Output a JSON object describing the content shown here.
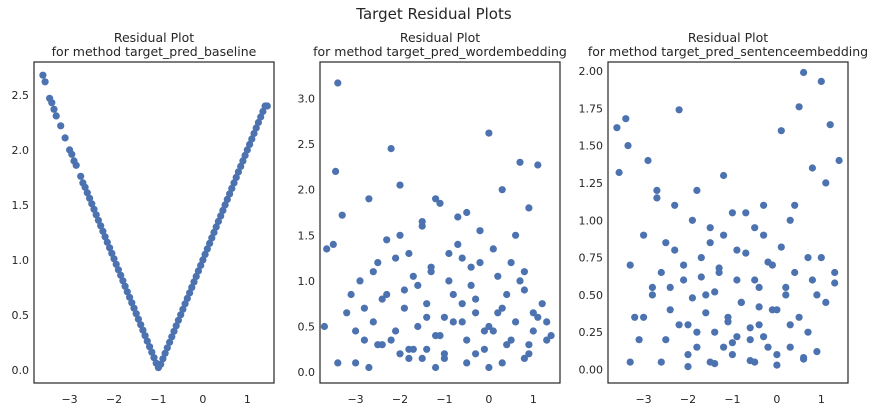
{
  "figure": {
    "suptitle": "Target Residual Plots"
  },
  "chart_data": [
    {
      "type": "scatter",
      "title_line1": "Residual Plot",
      "title_line2": "for method target_pred_baseline",
      "xlim": [
        -3.8,
        1.6
      ],
      "ylim": [
        -0.12,
        2.8
      ],
      "xticks": [
        -3,
        -2,
        -1,
        0,
        1
      ],
      "yticks": [
        0.0,
        0.5,
        1.0,
        1.5,
        2.0,
        2.5
      ],
      "ytick_labels": [
        "0.0",
        "0.5",
        "1.0",
        "1.5",
        "2.0",
        "2.5"
      ],
      "color": "#4c72b0",
      "x": [
        -3.6,
        -3.55,
        -3.45,
        -3.4,
        -3.35,
        -3.3,
        -3.2,
        -3.1,
        -3.0,
        -2.95,
        -2.9,
        -2.85,
        -2.75,
        -2.7,
        -2.65,
        -2.6,
        -2.55,
        -2.5,
        -2.45,
        -2.4,
        -2.35,
        -2.3,
        -2.25,
        -2.2,
        -2.15,
        -2.1,
        -2.05,
        -2.0,
        -1.95,
        -1.9,
        -1.85,
        -1.8,
        -1.75,
        -1.7,
        -1.65,
        -1.6,
        -1.55,
        -1.5,
        -1.45,
        -1.4,
        -1.35,
        -1.3,
        -1.25,
        -1.2,
        -1.15,
        -1.1,
        -1.05,
        -1.0,
        -0.95,
        -0.9,
        -0.85,
        -0.8,
        -0.75,
        -0.7,
        -0.65,
        -0.6,
        -0.55,
        -0.5,
        -0.45,
        -0.4,
        -0.35,
        -0.3,
        -0.25,
        -0.2,
        -0.15,
        -0.1,
        -0.05,
        0.0,
        0.05,
        0.1,
        0.15,
        0.2,
        0.25,
        0.3,
        0.35,
        0.4,
        0.45,
        0.5,
        0.55,
        0.6,
        0.65,
        0.7,
        0.75,
        0.8,
        0.85,
        0.9,
        0.95,
        1.0,
        1.05,
        1.1,
        1.15,
        1.2,
        1.25,
        1.3,
        1.35,
        1.4,
        1.45
      ],
      "y": [
        2.68,
        2.62,
        2.47,
        2.43,
        2.37,
        2.31,
        2.22,
        2.11,
        2.0,
        1.96,
        1.9,
        1.86,
        1.76,
        1.7,
        1.66,
        1.61,
        1.56,
        1.51,
        1.46,
        1.41,
        1.36,
        1.31,
        1.26,
        1.21,
        1.16,
        1.11,
        1.06,
        1.01,
        0.96,
        0.91,
        0.86,
        0.81,
        0.76,
        0.71,
        0.66,
        0.61,
        0.56,
        0.51,
        0.46,
        0.41,
        0.36,
        0.31,
        0.26,
        0.21,
        0.16,
        0.11,
        0.06,
        0.02,
        0.05,
        0.1,
        0.15,
        0.2,
        0.25,
        0.3,
        0.35,
        0.4,
        0.45,
        0.5,
        0.55,
        0.6,
        0.65,
        0.7,
        0.75,
        0.8,
        0.85,
        0.9,
        0.95,
        1.0,
        1.05,
        1.1,
        1.15,
        1.2,
        1.25,
        1.3,
        1.35,
        1.4,
        1.45,
        1.5,
        1.55,
        1.6,
        1.65,
        1.7,
        1.75,
        1.8,
        1.85,
        1.9,
        1.95,
        2.0,
        2.05,
        2.1,
        2.15,
        2.2,
        2.25,
        2.3,
        2.35,
        2.4,
        2.4
      ]
    },
    {
      "type": "scatter",
      "title_line1": "Residual Plot",
      "title_line2": "for method target_pred_wordembedding",
      "xlim": [
        -3.8,
        1.6
      ],
      "ylim": [
        -0.12,
        3.4
      ],
      "xticks": [
        -3,
        -2,
        -1,
        0,
        1
      ],
      "yticks": [
        0.0,
        0.5,
        1.0,
        1.5,
        2.0,
        2.5,
        3.0
      ],
      "ytick_labels": [
        "0.0",
        "0.5",
        "1.0",
        "1.5",
        "2.0",
        "2.5",
        "3.0"
      ],
      "color": "#4c72b0",
      "x": [
        -3.7,
        -3.65,
        -3.5,
        -3.45,
        -3.4,
        -3.3,
        -3.2,
        -3.1,
        -3.0,
        -2.9,
        -2.8,
        -2.7,
        -2.6,
        -2.5,
        -2.4,
        -2.3,
        -2.2,
        -2.1,
        -2.0,
        -1.9,
        -1.8,
        -1.7,
        -1.6,
        -1.5,
        -1.4,
        -1.3,
        -1.2,
        -1.1,
        -1.0,
        -0.9,
        -0.8,
        -0.7,
        -0.6,
        -0.5,
        -0.4,
        -0.3,
        -0.2,
        -0.1,
        0.0,
        0.1,
        0.2,
        0.3,
        0.4,
        0.5,
        0.6,
        0.7,
        0.8,
        0.9,
        1.0,
        1.1,
        1.2,
        1.3,
        1.4,
        -3.4,
        -2.0,
        -1.5,
        -1.2,
        -0.5,
        0.0,
        0.8,
        -2.5,
        -1.8,
        -1.0,
        -0.3,
        0.3,
        0.9,
        -3.0,
        -2.2,
        -1.6,
        -1.1,
        -0.6,
        -0.1,
        0.5,
        1.1,
        -2.8,
        -2.4,
        -1.9,
        -1.4,
        -0.8,
        -0.4,
        0.2,
        0.7,
        1.3,
        -2.6,
        -2.1,
        -1.7,
        -1.3,
        -0.9,
        -0.2,
        0.4,
        1.0,
        -2.3,
        -1.5,
        -0.7,
        0.1,
        0.6,
        -1.2,
        -0.5,
        0.3,
        -2.7,
        -1.8,
        -1.0,
        -0.3,
        0.8,
        -2.0,
        -1.4,
        -0.6,
        0.0,
        0.9
      ],
      "y": [
        0.5,
        1.35,
        1.4,
        2.2,
        3.17,
        1.72,
        0.65,
        0.85,
        0.1,
        1.0,
        0.35,
        1.9,
        0.55,
        1.2,
        0.3,
        0.85,
        2.45,
        0.45,
        1.5,
        0.7,
        1.3,
        0.25,
        0.95,
        1.65,
        0.6,
        1.1,
        0.4,
        1.85,
        0.2,
        1.0,
        0.55,
        1.4,
        0.75,
        0.35,
        1.15,
        0.65,
        1.55,
        0.25,
        2.62,
        0.45,
        1.05,
        0.7,
        0.3,
        1.2,
        0.55,
        2.3,
        0.9,
        1.8,
        0.45,
        2.27,
        0.75,
        0.35,
        0.4,
        0.1,
        0.2,
        0.15,
        0.05,
        0.1,
        0.05,
        0.15,
        0.3,
        0.25,
        0.15,
        0.2,
        0.1,
        0.3,
        0.45,
        0.35,
        0.5,
        0.4,
        0.55,
        0.45,
        0.35,
        0.6,
        0.7,
        0.8,
        0.9,
        0.75,
        0.85,
        0.95,
        0.65,
        1.0,
        0.55,
        1.1,
        1.25,
        1.05,
        1.15,
        1.3,
        1.2,
        0.85,
        0.65,
        1.45,
        1.6,
        1.7,
        1.35,
        1.5,
        1.9,
        1.75,
        2.0,
        0.05,
        0.15,
        0.6,
        0.8,
        1.1,
        2.05,
        0.25,
        1.25,
        0.5,
        0.2
      ]
    },
    {
      "type": "scatter",
      "title_line1": "Residual Plot",
      "title_line2": "for method target_pred_sentenceembedding",
      "xlim": [
        -3.8,
        1.6
      ],
      "ylim": [
        -0.09,
        2.06
      ],
      "xticks": [
        -3,
        -2,
        -1,
        0,
        1
      ],
      "yticks": [
        0.0,
        0.25,
        0.5,
        0.75,
        1.0,
        1.25,
        1.5,
        1.75,
        2.0
      ],
      "ytick_labels": [
        "0.00",
        "0.25",
        "0.50",
        "0.75",
        "1.00",
        "1.25",
        "1.50",
        "1.75",
        "2.00"
      ],
      "color": "#4c72b0",
      "x": [
        -3.6,
        -3.55,
        -3.4,
        -3.35,
        -3.3,
        -3.2,
        -3.1,
        -3.0,
        -2.9,
        -2.8,
        -2.7,
        -2.6,
        -2.5,
        -2.4,
        -2.3,
        -2.2,
        -2.1,
        -2.0,
        -1.9,
        -1.8,
        -1.7,
        -1.6,
        -1.5,
        -1.4,
        -1.3,
        -1.2,
        -1.1,
        -1.0,
        -0.9,
        -0.8,
        -0.7,
        -0.6,
        -0.5,
        -0.4,
        -0.3,
        -0.2,
        -0.1,
        0.0,
        0.1,
        0.2,
        0.3,
        0.4,
        0.5,
        0.6,
        0.7,
        0.8,
        0.9,
        1.0,
        1.1,
        1.2,
        1.3,
        1.4,
        -3.3,
        -2.0,
        -1.5,
        -1.2,
        -0.5,
        0.0,
        0.6,
        0.9,
        -2.5,
        -1.8,
        -1.0,
        -0.3,
        0.3,
        0.7,
        -3.0,
        -2.2,
        -1.6,
        -1.1,
        -0.6,
        -0.1,
        0.5,
        1.1,
        -2.8,
        -2.4,
        -1.9,
        -1.4,
        -0.8,
        -0.4,
        0.2,
        0.8,
        1.3,
        -2.6,
        -2.1,
        -1.7,
        -1.3,
        -0.9,
        -0.2,
        0.4,
        1.0,
        -2.3,
        -1.5,
        -0.7,
        0.1,
        -1.2,
        -0.5,
        0.3,
        -2.7,
        -1.8,
        -1.0,
        -0.3,
        -2.0,
        -1.4,
        -0.6,
        0.0,
        0.6,
        -0.9,
        -0.4
      ],
      "y": [
        1.62,
        1.32,
        1.68,
        1.5,
        0.7,
        0.35,
        0.2,
        0.9,
        1.4,
        0.55,
        1.2,
        0.05,
        0.85,
        0.4,
        1.1,
        1.74,
        0.6,
        0.3,
        1.0,
        0.15,
        0.75,
        0.5,
        0.95,
        0.25,
        0.65,
        1.3,
        0.35,
        0.1,
        0.8,
        0.45,
        1.05,
        0.2,
        0.6,
        0.3,
        0.9,
        0.15,
        0.7,
        0.4,
        1.6,
        0.55,
        0.3,
        1.1,
        1.76,
        1.99,
        0.75,
        1.35,
        0.5,
        1.93,
        1.25,
        1.64,
        0.65,
        1.4,
        0.05,
        0.1,
        0.05,
        0.15,
        0.05,
        0.1,
        0.08,
        0.12,
        0.2,
        0.25,
        0.18,
        0.22,
        0.15,
        0.25,
        0.35,
        0.3,
        0.38,
        0.32,
        0.28,
        0.4,
        0.35,
        0.45,
        0.5,
        0.55,
        0.48,
        0.52,
        0.45,
        0.55,
        0.5,
        0.6,
        0.58,
        0.65,
        0.7,
        0.62,
        0.68,
        0.6,
        0.72,
        0.65,
        0.75,
        0.8,
        0.85,
        0.78,
        0.82,
        0.9,
        0.95,
        1.0,
        1.15,
        1.2,
        1.05,
        1.1,
        0.02,
        0.04,
        0.06,
        0.03,
        0.07,
        0.22,
        0.42
      ]
    }
  ]
}
